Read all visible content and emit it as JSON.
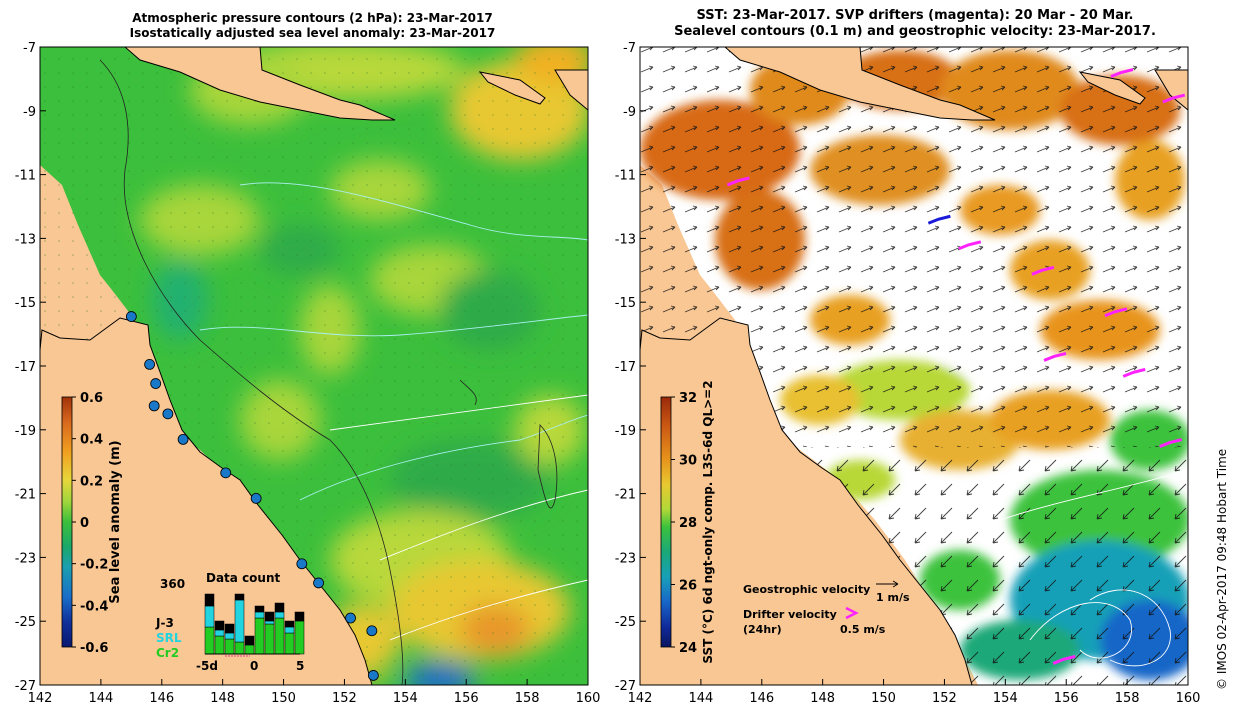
{
  "left_panel": {
    "title_line1": "Atmospheric pressure contours (2 hPa): 23-Mar-2017",
    "title_line2": "Isostatically adjusted sea level anomaly: 23-Mar-2017",
    "colorbar": {
      "label": "Sea level anomaly (m)",
      "ticks": [
        "0.6",
        "0.4",
        "0.2",
        "0",
        "-0.2",
        "-0.4",
        "-0.6"
      ],
      "colors": [
        "#a0320a",
        "#d8681e",
        "#f0a020",
        "#e8d63a",
        "#9ed63c",
        "#3cbf3c",
        "#1aa86a",
        "#1a9fb0",
        "#1a6ec8",
        "#10309a",
        "#0a1870"
      ]
    },
    "inset": {
      "title": "Data count",
      "max": "360",
      "series": [
        "J-3",
        "SRL",
        "Cr2"
      ],
      "series_colors": [
        "#000000",
        "#22d3e0",
        "#22cc22"
      ],
      "xticks": [
        "-5d",
        "0",
        "5"
      ],
      "bars": [
        {
          "black": 0.2,
          "cyan": 0.35,
          "green": 0.45
        },
        {
          "black": 0.15,
          "cyan": 0.1,
          "green": 0.3
        },
        {
          "black": 0.15,
          "cyan": 0.1,
          "green": 0.25
        },
        {
          "black": 0.1,
          "cyan": 0.7,
          "green": 0.2
        },
        {
          "black": 0.15,
          "cyan": 0.0,
          "green": 0.15
        },
        {
          "black": 0.1,
          "cyan": 0.1,
          "green": 0.6
        },
        {
          "black": 0.15,
          "cyan": 0.05,
          "green": 0.5
        },
        {
          "black": 0.15,
          "cyan": 0.1,
          "green": 0.6
        },
        {
          "black": 0.1,
          "cyan": 0.1,
          "green": 0.35
        },
        {
          "black": 0.15,
          "cyan": 0.0,
          "green": 0.55
        }
      ]
    },
    "tide_gauge_markers": [
      {
        "lon": 145.0,
        "lat": -15.45
      },
      {
        "lon": 145.6,
        "lat": -16.95
      },
      {
        "lon": 145.8,
        "lat": -17.55
      },
      {
        "lon": 145.75,
        "lat": -18.25
      },
      {
        "lon": 146.2,
        "lat": -18.5
      },
      {
        "lon": 146.7,
        "lat": -19.3
      },
      {
        "lon": 148.1,
        "lat": -20.35
      },
      {
        "lon": 149.1,
        "lat": -21.15
      },
      {
        "lon": 150.6,
        "lat": -23.2
      },
      {
        "lon": 151.15,
        "lat": -23.8
      },
      {
        "lon": 152.2,
        "lat": -24.9
      },
      {
        "lon": 152.9,
        "lat": -25.3
      },
      {
        "lon": 152.95,
        "lat": -26.7
      }
    ]
  },
  "right_panel": {
    "title_line1": "SST: 23-Mar-2017. SVP drifters (magenta): 20 Mar - 20 Mar.",
    "title_line2": "Sealevel contours (0.1 m) and geostrophic velocity: 23-Mar-2017.",
    "colorbar": {
      "label": "SST (°C) 6d ngt-only comp. L3S-6d QL>=2",
      "ticks": [
        "32",
        "30",
        "28",
        "26",
        "24"
      ],
      "colors": [
        "#9a2a0a",
        "#cc5a14",
        "#e8941c",
        "#e8c830",
        "#b0d838",
        "#3cc23c",
        "#1aa878",
        "#18a0b8",
        "#1866c8",
        "#102a9a",
        "#0a1660"
      ]
    },
    "legend": {
      "geo_label": "Geostrophic velocity",
      "geo_scale": "1 m/s",
      "drifter_label_line1": "Drifter velocity",
      "drifter_label_line2": "(24hr)",
      "drifter_scale": "0.5 m/s"
    },
    "drifter_tracks": [
      {
        "lon": 145.2,
        "lat": -11.2
      },
      {
        "lon": 151.8,
        "lat": -12.4
      },
      {
        "lon": 152.8,
        "lat": -13.2
      },
      {
        "lon": 155.2,
        "lat": -14.0
      },
      {
        "lon": 157.6,
        "lat": -15.3
      },
      {
        "lon": 155.6,
        "lat": -16.7
      },
      {
        "lon": 158.2,
        "lat": -17.2
      },
      {
        "lon": 159.4,
        "lat": -19.4
      },
      {
        "lon": 155.9,
        "lat": -26.2
      },
      {
        "lon": 157.8,
        "lat": -7.8
      },
      {
        "lon": 159.5,
        "lat": -8.6
      }
    ],
    "credit": "©  IMOS 02-Apr-2017 09:48 Hobart Time"
  },
  "axes": {
    "x_ticks": [
      "142",
      "144",
      "146",
      "148",
      "150",
      "152",
      "154",
      "156",
      "158",
      "160"
    ],
    "y_ticks": [
      "-7",
      "-9",
      "-11",
      "-13",
      "-15",
      "-17",
      "-19",
      "-21",
      "-23",
      "-25",
      "-27"
    ],
    "lon_range": [
      142,
      160
    ],
    "lat_range": [
      -27,
      -7
    ]
  },
  "colors": {
    "land": "#f9c794",
    "sla_base": "#3cbf3c"
  }
}
